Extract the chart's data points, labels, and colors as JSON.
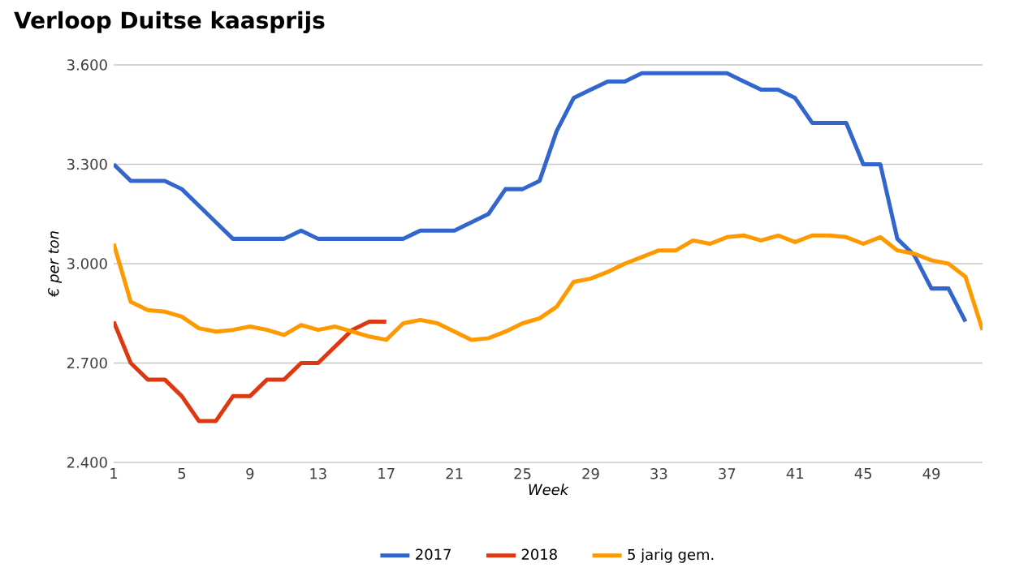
{
  "chart_data": {
    "type": "line",
    "title": "Verloop Duitse kaasprijs",
    "xlabel": "Week",
    "ylabel": "€ per ton",
    "xlim": [
      1,
      52
    ],
    "xticks": [
      1,
      5,
      9,
      13,
      17,
      21,
      25,
      29,
      33,
      37,
      41,
      45,
      49
    ],
    "ylim": [
      2400,
      3600
    ],
    "yticks": [
      {
        "value": 2400,
        "label": "2.400"
      },
      {
        "value": 2700,
        "label": "2.700"
      },
      {
        "value": 3000,
        "label": "3.000"
      },
      {
        "value": 3300,
        "label": "3.300"
      },
      {
        "value": 3600,
        "label": "3.600"
      }
    ],
    "grid": "y",
    "legend": "bottom",
    "series": [
      {
        "name": "2017",
        "color": "#3366cc",
        "x": [
          1,
          2,
          3,
          4,
          5,
          6,
          7,
          8,
          9,
          10,
          11,
          12,
          13,
          14,
          15,
          16,
          17,
          18,
          19,
          20,
          21,
          22,
          23,
          24,
          25,
          26,
          27,
          28,
          29,
          30,
          31,
          32,
          33,
          34,
          35,
          36,
          37,
          38,
          39,
          40,
          41,
          42,
          43,
          44,
          45,
          46,
          47,
          48,
          49,
          50,
          51
        ],
        "values": [
          3300,
          3250,
          3250,
          3250,
          3225,
          3175,
          3125,
          3075,
          3075,
          3075,
          3075,
          3100,
          3075,
          3075,
          3075,
          3075,
          3075,
          3075,
          3100,
          3100,
          3100,
          3125,
          3150,
          3225,
          3225,
          3250,
          3400,
          3500,
          3525,
          3550,
          3550,
          3575,
          3575,
          3575,
          3575,
          3575,
          3575,
          3550,
          3525,
          3525,
          3500,
          3425,
          3425,
          3425,
          3300,
          3300,
          3075,
          3025,
          2925,
          2925,
          2825
        ]
      },
      {
        "name": "2018",
        "color": "#dc3912",
        "x": [
          1,
          2,
          3,
          4,
          5,
          6,
          7,
          8,
          9,
          10,
          11,
          12,
          13,
          14,
          15,
          16,
          17
        ],
        "values": [
          2825,
          2700,
          2650,
          2650,
          2600,
          2525,
          2525,
          2600,
          2600,
          2650,
          2650,
          2700,
          2700,
          2750,
          2800,
          2825,
          2825
        ]
      },
      {
        "name": "5 jarig gem.",
        "color": "#ff9900",
        "x": [
          1,
          2,
          3,
          4,
          5,
          6,
          7,
          8,
          9,
          10,
          11,
          12,
          13,
          14,
          15,
          16,
          17,
          18,
          19,
          20,
          21,
          22,
          23,
          24,
          25,
          26,
          27,
          28,
          29,
          30,
          31,
          32,
          33,
          34,
          35,
          36,
          37,
          38,
          39,
          40,
          41,
          42,
          43,
          44,
          45,
          46,
          47,
          48,
          49,
          50,
          51,
          52
        ],
        "values": [
          3060,
          2885,
          2860,
          2855,
          2840,
          2805,
          2795,
          2800,
          2810,
          2800,
          2785,
          2815,
          2800,
          2810,
          2795,
          2780,
          2770,
          2820,
          2830,
          2820,
          2795,
          2770,
          2775,
          2795,
          2820,
          2835,
          2870,
          2945,
          2955,
          2975,
          3000,
          3020,
          3040,
          3040,
          3070,
          3060,
          3080,
          3085,
          3070,
          3085,
          3065,
          3085,
          3085,
          3080,
          3060,
          3080,
          3040,
          3030,
          3010,
          3000,
          2960,
          2800
        ]
      }
    ]
  }
}
